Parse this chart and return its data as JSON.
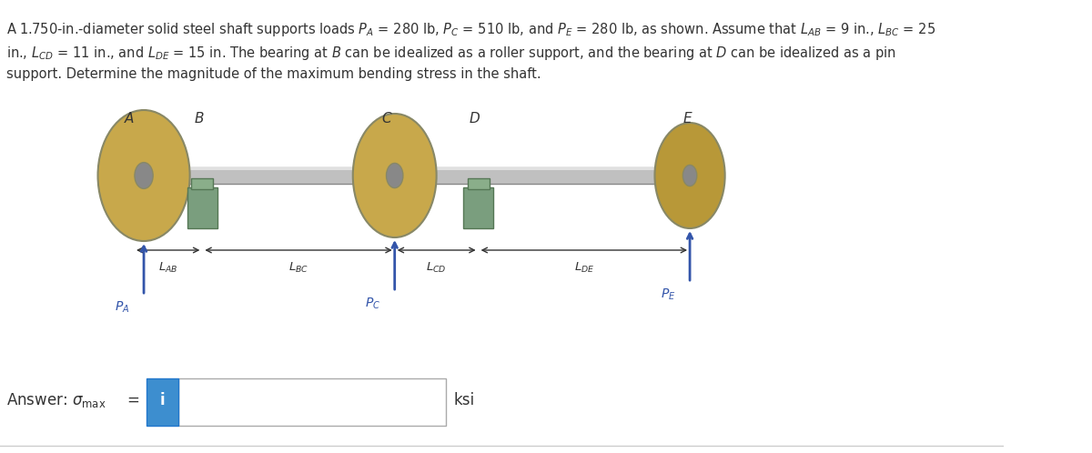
{
  "title_text": "A 1.750-in.-diameter solid steel shaft supports loads P",
  "description": "A 1.750-in.-diameter solid steel shaft supports loads P_A = 280 lb, P_C = 510 lb, and P_E = 280 lb, as shown. Assume that L_AB = 9 in., L_BC = 25\nin., L_CD = 11 in., and L_DE = 15 in. The bearing at B can be idealized as a roller support, and the bearing at D can be idealized as a pin\nsupport. Determine the magnitude of the maximum bending stress in the shaft.",
  "answer_label": "Answer: σ",
  "answer_subscript": "max",
  "answer_equals": " =",
  "answer_units": "ksi",
  "bg_color": "#ffffff",
  "text_color": "#333333",
  "box_border_color": "#cccccc",
  "info_button_color": "#3d8ecf",
  "info_button_text": "i",
  "shaft_color": "#b0b0b0",
  "disk_color": "#c8a84b",
  "bearing_color": "#7a9e7e",
  "arrow_color": "#3355aa",
  "dim_arrow_color": "#333333",
  "points": [
    "A",
    "B",
    "C",
    "D",
    "E"
  ],
  "loads": [
    "P_A",
    "P_C",
    "P_E"
  ],
  "lengths": [
    "L_AB",
    "L_BC",
    "L_CD",
    "L_DE"
  ],
  "font_size_desc": 13.5,
  "font_size_answer": 14
}
